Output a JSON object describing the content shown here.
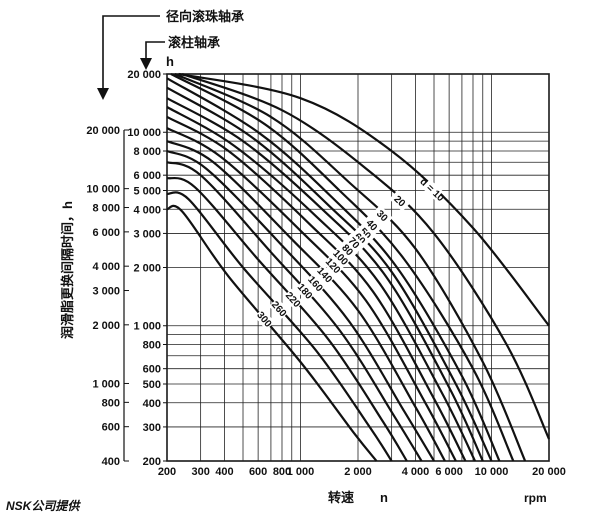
{
  "chart_data": {
    "type": "line",
    "title": "",
    "arrow_labels": {
      "radial": "径向滚珠轴承",
      "roller": "滚柱轴承"
    },
    "y_unit_label": "h",
    "ylabel": "润滑脂更换间隔时间，h",
    "xlabel": "转速",
    "x_symbol": "n",
    "x_unit": "rpm",
    "footer": "NSK公司提供",
    "x_scale": "log",
    "y_scale": "log",
    "xlim": [
      200,
      20000
    ],
    "ylim_roller": [
      200,
      20000
    ],
    "ylim_radial": [
      400,
      20000
    ],
    "x_tick_labels": [
      "200",
      "300",
      "400",
      "600",
      "800",
      "1 000",
      "2 000",
      "4 000",
      "6 000",
      "10 000",
      "20 000"
    ],
    "x_tick_values": [
      200,
      300,
      400,
      600,
      800,
      1000,
      2000,
      4000,
      6000,
      10000,
      20000
    ],
    "y_tick_labels_roller": [
      "20 000",
      "10 000",
      "8 000",
      "6 000",
      "5 000",
      "4 000",
      "3 000",
      "2 000",
      "1 000",
      "800",
      "600",
      "500",
      "400",
      "300",
      "200"
    ],
    "y_tick_values_roller": [
      20000,
      10000,
      8000,
      6000,
      5000,
      4000,
      3000,
      2000,
      1000,
      800,
      600,
      500,
      400,
      300,
      200
    ],
    "y_tick_labels_radial": [
      "20 000",
      "10 000",
      "8 000",
      "6 000",
      "4 000",
      "3 000",
      "2 000",
      "1 000",
      "800",
      "600",
      "400"
    ],
    "y_tick_values_radial": [
      20000,
      10000,
      8000,
      6000,
      4000,
      3000,
      2000,
      1000,
      800,
      600,
      400
    ],
    "series_label_prefix": "d = ",
    "series": [
      {
        "name": "10",
        "x": [
          230,
          1000,
          3000,
          8000,
          20000
        ],
        "y": [
          20000,
          15000,
          8000,
          3200,
          1000
        ]
      },
      {
        "name": "20",
        "x": [
          240,
          800,
          2200,
          5000,
          12000,
          20000
        ],
        "y": [
          20000,
          13000,
          6500,
          3000,
          800,
          260
        ]
      },
      {
        "name": "30",
        "x": [
          220,
          700,
          1800,
          4000,
          9000,
          15000
        ],
        "y": [
          20000,
          12000,
          5500,
          2500,
          650,
          200
        ]
      },
      {
        "name": "40",
        "x": [
          210,
          650,
          1600,
          3500,
          8000,
          13000
        ],
        "y": [
          20000,
          11000,
          5000,
          2200,
          600,
          200
        ]
      },
      {
        "name": "50",
        "x": [
          200,
          600,
          1500,
          3200,
          7000,
          11000
        ],
        "y": [
          19000,
          10000,
          4500,
          2000,
          550,
          200
        ]
      },
      {
        "name": "60",
        "x": [
          200,
          550,
          1400,
          3000,
          6500,
          10000
        ],
        "y": [
          17000,
          9500,
          4200,
          1900,
          500,
          200
        ]
      },
      {
        "name": "70",
        "x": [
          200,
          500,
          1300,
          2800,
          6000,
          9000
        ],
        "y": [
          15000,
          9000,
          4000,
          1800,
          480,
          200
        ]
      },
      {
        "name": "80",
        "x": [
          200,
          450,
          1200,
          2600,
          5500,
          8200
        ],
        "y": [
          13500,
          8500,
          3700,
          1650,
          450,
          200
        ]
      },
      {
        "name": "100",
        "x": [
          200,
          420,
          1100,
          2400,
          5000,
          7300
        ],
        "y": [
          12000,
          8000,
          3400,
          1500,
          420,
          200
        ]
      },
      {
        "name": "120",
        "x": [
          200,
          380,
          1000,
          2200,
          4500,
          6500
        ],
        "y": [
          10500,
          7500,
          3100,
          1350,
          400,
          200
        ]
      },
      {
        "name": "140",
        "x": [
          200,
          350,
          900,
          2000,
          4000,
          5700
        ],
        "y": [
          9000,
          7000,
          2800,
          1200,
          380,
          200
        ]
      },
      {
        "name": "160",
        "x": [
          200,
          320,
          800,
          1800,
          3500,
          5000
        ],
        "y": [
          8000,
          6500,
          2600,
          1050,
          360,
          200
        ]
      },
      {
        "name": "180",
        "x": [
          200,
          300,
          700,
          1600,
          3100,
          4300
        ],
        "y": [
          7000,
          6000,
          2400,
          950,
          340,
          200
        ]
      },
      {
        "name": "220",
        "x": [
          200,
          280,
          600,
          1400,
          2700,
          3600
        ],
        "y": [
          5800,
          5200,
          2200,
          850,
          320,
          200
        ]
      },
      {
        "name": "260",
        "x": [
          200,
          260,
          500,
          1200,
          2300,
          3000
        ],
        "y": [
          4800,
          4500,
          2000,
          750,
          300,
          200
        ]
      },
      {
        "name": "300",
        "x": [
          200,
          240,
          420,
          1000,
          1900,
          2500
        ],
        "y": [
          4000,
          3900,
          1800,
          650,
          280,
          200
        ]
      }
    ],
    "grid": true,
    "legend": "inline labels"
  }
}
